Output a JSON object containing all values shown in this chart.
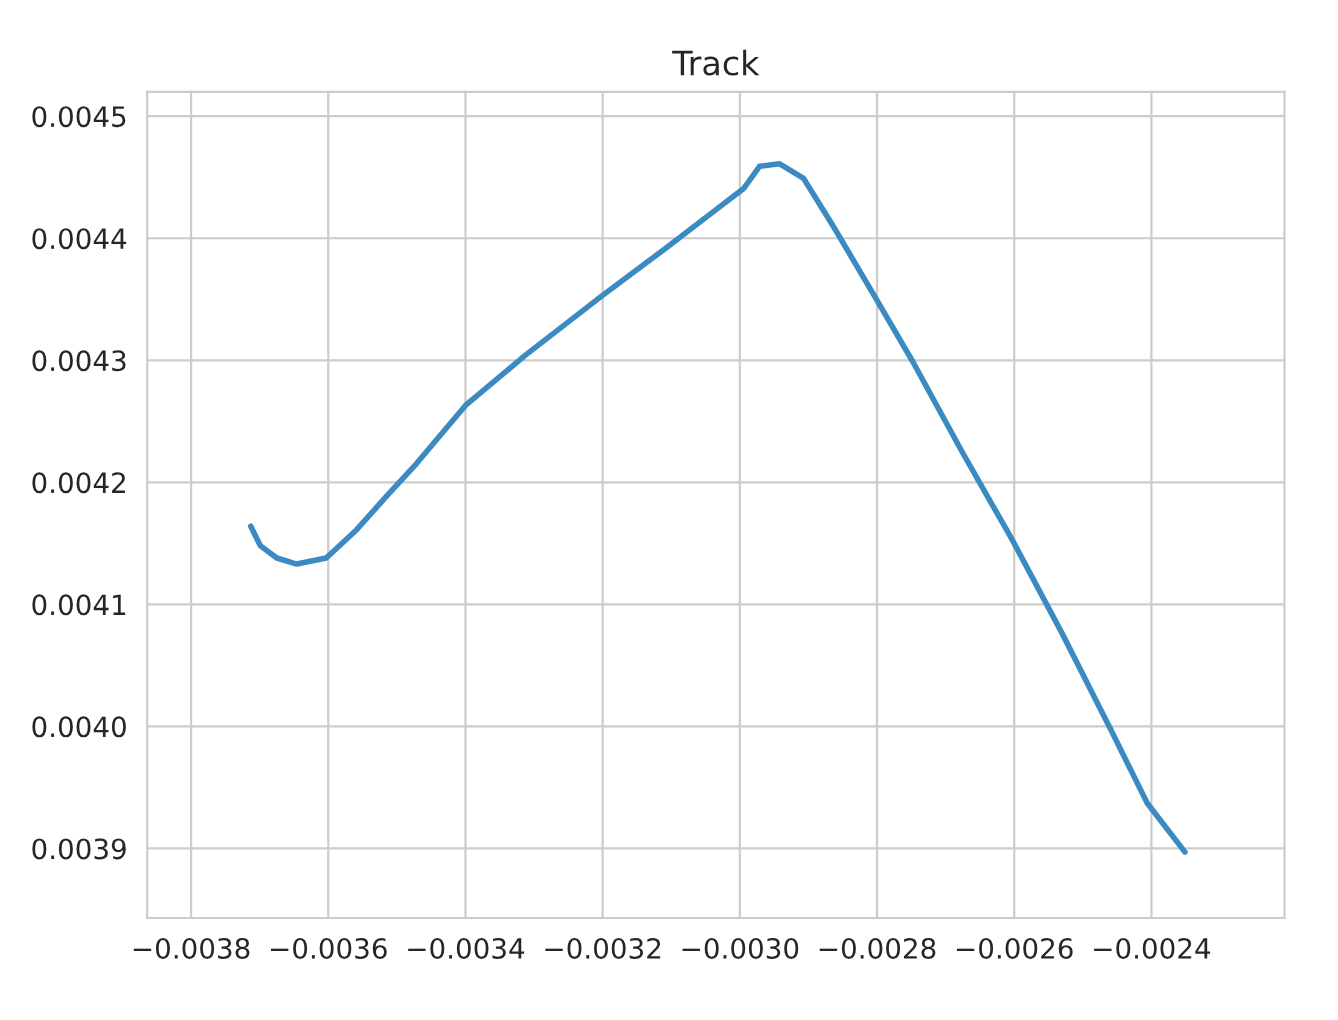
{
  "chart_data": {
    "type": "line",
    "title": "Track",
    "grid": true,
    "marker": "none",
    "line_style": "solid",
    "xlim": [
      -0.003864,
      -0.002206
    ],
    "ylim": [
      0.003843,
      0.00452
    ],
    "xticks": [
      {
        "value": -0.0038,
        "label": "−0.0038"
      },
      {
        "value": -0.0036,
        "label": "−0.0036"
      },
      {
        "value": -0.0034,
        "label": "−0.0034"
      },
      {
        "value": -0.0032,
        "label": "−0.0032"
      },
      {
        "value": -0.003,
        "label": "−0.0030"
      },
      {
        "value": -0.0028,
        "label": "−0.0028"
      },
      {
        "value": -0.0026,
        "label": "−0.0026"
      },
      {
        "value": -0.0024,
        "label": "−0.0024"
      }
    ],
    "yticks": [
      {
        "value": 0.0039,
        "label": "0.0039"
      },
      {
        "value": 0.004,
        "label": "0.0040"
      },
      {
        "value": 0.0041,
        "label": "0.0041"
      },
      {
        "value": 0.0042,
        "label": "0.0042"
      },
      {
        "value": 0.0043,
        "label": "0.0043"
      },
      {
        "value": 0.0044,
        "label": "0.0044"
      },
      {
        "value": 0.0045,
        "label": "0.0045"
      }
    ],
    "series": [
      {
        "color": "#3b8bc2",
        "x": [
          -0.003713,
          -0.003699,
          -0.003675,
          -0.003646,
          -0.003603,
          -0.003559,
          -0.003516,
          -0.003472,
          -0.0034,
          -0.003313,
          -0.003203,
          -0.00311,
          -0.003038,
          -0.002994,
          -0.002971,
          -0.002942,
          -0.002907,
          -0.002864,
          -0.002803,
          -0.002748,
          -0.002675,
          -0.002603,
          -0.00253,
          -0.002458,
          -0.002406,
          -0.002351
        ],
        "values": [
          0.004164,
          0.004148,
          0.004138,
          0.004133,
          0.004138,
          0.004161,
          0.004188,
          0.004215,
          0.004263,
          0.004304,
          0.004352,
          0.004391,
          0.004422,
          0.004441,
          0.004459,
          0.004461,
          0.004449,
          0.00441,
          0.004352,
          0.004299,
          0.004224,
          0.004153,
          0.004076,
          0.003996,
          0.003937,
          0.003897
        ]
      }
    ]
  }
}
